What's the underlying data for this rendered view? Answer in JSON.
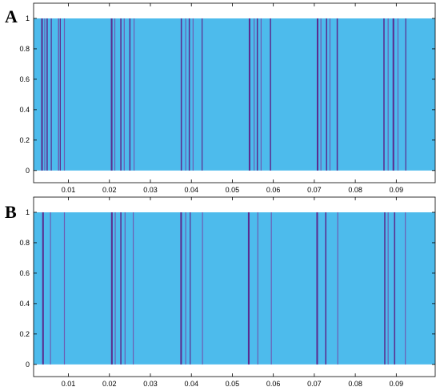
{
  "chart_data": [
    {
      "type": "bar",
      "panel_label": "A",
      "xlim": [
        0.0015,
        0.0995
      ],
      "ylim": [
        -0.08,
        1.1
      ],
      "xticks": [
        "0.01",
        "0.02",
        "0.03",
        "0.04",
        "0.05",
        "0.06",
        "0.07",
        "0.08",
        "0.09"
      ],
      "yticks": [
        "0",
        "0.2",
        "0.4",
        "0.6",
        "0.8",
        "1"
      ],
      "background_level": 1,
      "colors": {
        "fill": "#4dbbec",
        "dark": "#5a2c8f",
        "mid": "#6d5cb4"
      },
      "spikes": [
        {
          "x": 0.00355,
          "w": 0.0004,
          "tone": "dark"
        },
        {
          "x": 0.0042,
          "w": 0.0002,
          "tone": "mid"
        },
        {
          "x": 0.0048,
          "w": 0.0003,
          "tone": "dark"
        },
        {
          "x": 0.0058,
          "w": 0.0002,
          "tone": "dark"
        },
        {
          "x": 0.0076,
          "w": 0.0003,
          "tone": "mid"
        },
        {
          "x": 0.008,
          "w": 0.0002,
          "tone": "dark"
        },
        {
          "x": 0.009,
          "w": 0.0002,
          "tone": "mid"
        },
        {
          "x": 0.02055,
          "w": 0.0004,
          "tone": "dark"
        },
        {
          "x": 0.0213,
          "w": 0.0002,
          "tone": "mid"
        },
        {
          "x": 0.0228,
          "w": 0.0003,
          "tone": "dark"
        },
        {
          "x": 0.0236,
          "w": 0.0002,
          "tone": "mid"
        },
        {
          "x": 0.025,
          "w": 0.0003,
          "tone": "dark"
        },
        {
          "x": 0.026,
          "w": 0.0002,
          "tone": "mid"
        },
        {
          "x": 0.03755,
          "w": 0.0003,
          "tone": "dark"
        },
        {
          "x": 0.0386,
          "w": 0.0002,
          "tone": "mid"
        },
        {
          "x": 0.0395,
          "w": 0.0003,
          "tone": "dark"
        },
        {
          "x": 0.0404,
          "w": 0.0002,
          "tone": "mid"
        },
        {
          "x": 0.0426,
          "w": 0.0002,
          "tone": "dark"
        },
        {
          "x": 0.0542,
          "w": 0.0004,
          "tone": "dark"
        },
        {
          "x": 0.0553,
          "w": 0.0002,
          "tone": "mid"
        },
        {
          "x": 0.0561,
          "w": 0.0003,
          "tone": "dark"
        },
        {
          "x": 0.057,
          "w": 0.0002,
          "tone": "mid"
        },
        {
          "x": 0.0593,
          "w": 0.0003,
          "tone": "dark"
        },
        {
          "x": 0.0708,
          "w": 0.0004,
          "tone": "dark"
        },
        {
          "x": 0.0716,
          "w": 0.0002,
          "tone": "mid"
        },
        {
          "x": 0.073,
          "w": 0.0003,
          "tone": "dark"
        },
        {
          "x": 0.0738,
          "w": 0.0002,
          "tone": "mid"
        },
        {
          "x": 0.0756,
          "w": 0.0003,
          "tone": "dark"
        },
        {
          "x": 0.087,
          "w": 0.0003,
          "tone": "dark"
        },
        {
          "x": 0.088,
          "w": 0.0002,
          "tone": "mid"
        },
        {
          "x": 0.0893,
          "w": 0.0004,
          "tone": "dark"
        },
        {
          "x": 0.0904,
          "w": 0.0002,
          "tone": "mid"
        },
        {
          "x": 0.0923,
          "w": 0.0002,
          "tone": "dark"
        }
      ]
    },
    {
      "type": "bar",
      "panel_label": "B",
      "xlim": [
        0.0015,
        0.0995
      ],
      "ylim": [
        -0.08,
        1.1
      ],
      "xticks": [
        "0.01",
        "0.02",
        "0.03",
        "0.04",
        "0.05",
        "0.06",
        "0.07",
        "0.08",
        "0.09"
      ],
      "yticks": [
        "0",
        "0.2",
        "0.4",
        "0.6",
        "0.8",
        "1"
      ],
      "background_level": 1,
      "colors": {
        "fill": "#4dbbec",
        "dark": "#5a2c8f",
        "mid": "#6d5cb4"
      },
      "spikes": [
        {
          "x": 0.0038,
          "w": 0.0004,
          "tone": "dark"
        },
        {
          "x": 0.0056,
          "w": 0.0002,
          "tone": "mid"
        },
        {
          "x": 0.009,
          "w": 0.0002,
          "tone": "mid"
        },
        {
          "x": 0.0206,
          "w": 0.0004,
          "tone": "dark"
        },
        {
          "x": 0.0214,
          "w": 0.0002,
          "tone": "mid"
        },
        {
          "x": 0.0228,
          "w": 0.0003,
          "tone": "dark"
        },
        {
          "x": 0.0238,
          "w": 0.0002,
          "tone": "mid"
        },
        {
          "x": 0.0258,
          "w": 0.0002,
          "tone": "mid"
        },
        {
          "x": 0.0375,
          "w": 0.0004,
          "tone": "dark"
        },
        {
          "x": 0.0386,
          "w": 0.0002,
          "tone": "mid"
        },
        {
          "x": 0.0397,
          "w": 0.0002,
          "tone": "dark"
        },
        {
          "x": 0.0427,
          "w": 0.0002,
          "tone": "mid"
        },
        {
          "x": 0.054,
          "w": 0.0004,
          "tone": "dark"
        },
        {
          "x": 0.0562,
          "w": 0.0002,
          "tone": "mid"
        },
        {
          "x": 0.0595,
          "w": 0.0002,
          "tone": "mid"
        },
        {
          "x": 0.0707,
          "w": 0.0004,
          "tone": "dark"
        },
        {
          "x": 0.0728,
          "w": 0.0003,
          "tone": "dark"
        },
        {
          "x": 0.0757,
          "w": 0.0002,
          "tone": "mid"
        },
        {
          "x": 0.0872,
          "w": 0.0003,
          "tone": "dark"
        },
        {
          "x": 0.088,
          "w": 0.0002,
          "tone": "mid"
        },
        {
          "x": 0.0896,
          "w": 0.0003,
          "tone": "dark"
        },
        {
          "x": 0.0922,
          "w": 0.0002,
          "tone": "mid"
        }
      ]
    }
  ]
}
